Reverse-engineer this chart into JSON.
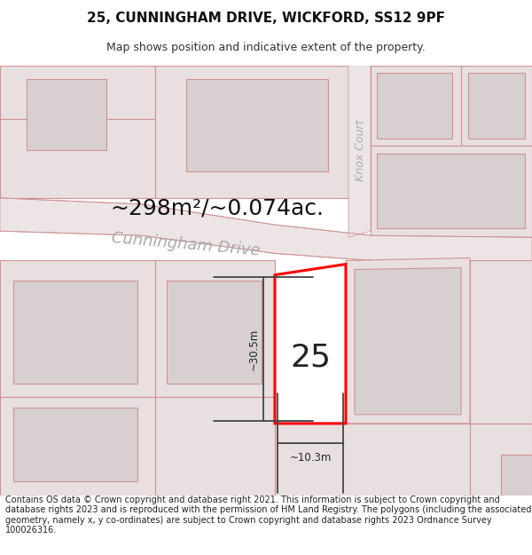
{
  "title_line1": "25, CUNNINGHAM DRIVE, WICKFORD, SS12 9PF",
  "title_line2": "Map shows position and indicative extent of the property.",
  "area_text": "~298m²/~0.074ac.",
  "street_name": "Cunningham Drive",
  "knox_court": "Knox Court",
  "property_number": "25",
  "dim_width": "~10.3m",
  "dim_height": "~30.5m",
  "footer_text": "Contains OS data © Crown copyright and database right 2021. This information is subject to Crown copyright and database rights 2023 and is reproduced with the permission of HM Land Registry. The polygons (including the associated geometry, namely x, y co-ordinates) are subject to Crown copyright and database rights 2023 Ordnance Survey 100026316.",
  "bg_color": "#ffffff",
  "map_bg": "#faf5f5",
  "plot_fill": "#e8e0e0",
  "plot_edge": "#d49090",
  "prop_fill": "#f0e8e8",
  "prop_edge": "#ff0000",
  "road_fill": "#f0e8e8",
  "road_edge": "#d49090",
  "dim_color": "#444444",
  "street_color": "#aaaaaa",
  "title_fs": 11,
  "sub_fs": 9,
  "area_fs": 18,
  "street_fs": 13,
  "num_fs": 26,
  "footer_fs": 7
}
